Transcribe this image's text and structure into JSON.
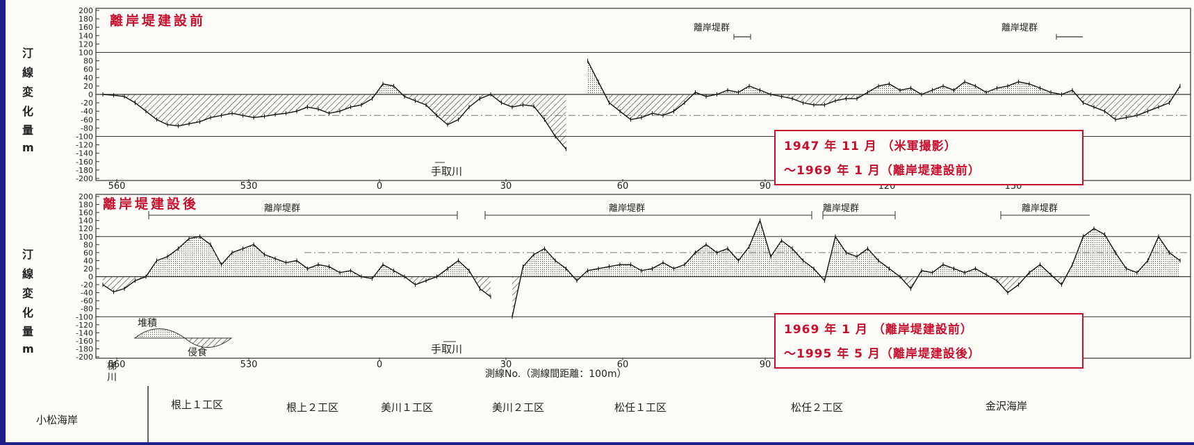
{
  "y_axis_label": [
    "汀",
    "線",
    "変",
    "化",
    "量",
    "m"
  ],
  "y_ticks": [
    200,
    180,
    160,
    140,
    120,
    100,
    80,
    60,
    40,
    20,
    0,
    -20,
    -40,
    -60,
    -80,
    -100,
    -120,
    -140,
    -160,
    -180,
    -200
  ],
  "x_ticks": [
    "560",
    "530",
    "0",
    "30",
    "60",
    "90",
    "120",
    "150"
  ],
  "x_axis_title": "測線No.（測線間距離：100m）",
  "x_origin_label": [
    "梯",
    "川"
  ],
  "river_label": "手取川",
  "group_label": "離岸堤群",
  "chart_data": [
    {
      "type": "area",
      "panel": "top",
      "title": "離岸堤建設前",
      "ylim": [
        -200,
        200
      ],
      "period": [
        "1947 年 11 月 （米軍撮影）",
        "～1969 年 1 月（離岸堤建設前）"
      ],
      "reference_lines": [
        100,
        -100
      ],
      "mean_lines": [
        -50
      ],
      "detached_breakwater_groups": [
        "離岸堤群",
        "離岸堤群"
      ],
      "x": [
        0,
        2,
        4,
        6,
        8,
        10,
        12,
        14,
        16,
        18,
        20,
        22,
        24,
        26,
        28,
        30,
        32,
        34,
        36,
        38,
        40,
        42,
        44,
        46,
        48,
        50,
        52,
        54,
        56,
        58,
        60,
        62,
        64,
        66,
        68,
        70,
        72,
        74,
        76,
        78,
        80,
        82,
        84,
        86,
        88,
        90,
        92,
        94,
        96,
        98,
        100,
        102,
        104,
        106,
        108,
        110,
        112,
        114,
        116,
        118,
        120,
        122,
        124,
        126,
        128,
        130,
        132,
        134,
        136,
        138,
        140,
        142,
        144,
        146,
        148,
        150,
        152,
        154,
        156,
        158,
        160,
        162,
        164,
        166,
        168,
        170,
        172,
        174,
        176,
        178,
        180,
        182,
        184,
        186,
        188,
        190,
        192,
        194,
        196,
        198,
        200
      ],
      "values": [
        0,
        -2,
        -5,
        -20,
        -40,
        -60,
        -72,
        -75,
        -70,
        -65,
        -55,
        -50,
        -45,
        -50,
        -55,
        -52,
        -48,
        -45,
        -40,
        -30,
        -35,
        -45,
        -40,
        -30,
        -25,
        -10,
        25,
        20,
        -5,
        -15,
        -25,
        -50,
        -72,
        -60,
        -30,
        -10,
        0,
        -20,
        -30,
        -25,
        -28,
        -60,
        -100,
        -130,
        null,
        80,
        30,
        -20,
        -40,
        -60,
        -55,
        -45,
        -50,
        -40,
        -20,
        5,
        -5,
        0,
        10,
        5,
        20,
        10,
        0,
        -5,
        -10,
        -20,
        -25,
        -25,
        -15,
        -10,
        -10,
        5,
        20,
        25,
        10,
        15,
        0,
        10,
        20,
        10,
        30,
        20,
        5,
        15,
        20,
        30,
        25,
        15,
        5,
        0,
        10,
        -20,
        -30,
        -40,
        -60,
        -55,
        -50,
        -40,
        -30,
        -20,
        20
      ]
    },
    {
      "type": "area",
      "panel": "bottom",
      "title": "離岸堤建設後",
      "ylim": [
        -200,
        200
      ],
      "period": [
        "1969 年 1 月 （離岸堤建設前）",
        "～1995 年 5 月（離岸堤建設後）"
      ],
      "reference_lines": [
        100,
        -100
      ],
      "mean_lines": [
        60
      ],
      "detached_breakwater_groups": [
        "離岸堤群",
        "離岸堤群",
        "離岸堤群",
        "離岸堤群"
      ],
      "legend_items": [
        "堆積",
        "侵食"
      ],
      "x": [
        0,
        2,
        4,
        6,
        8,
        10,
        12,
        14,
        16,
        18,
        20,
        22,
        24,
        26,
        28,
        30,
        32,
        34,
        36,
        38,
        40,
        42,
        44,
        46,
        48,
        50,
        52,
        54,
        56,
        58,
        60,
        62,
        64,
        66,
        68,
        70,
        72,
        74,
        76,
        78,
        80,
        82,
        84,
        86,
        88,
        90,
        92,
        94,
        96,
        98,
        100,
        102,
        104,
        106,
        108,
        110,
        112,
        114,
        116,
        118,
        120,
        122,
        124,
        126,
        128,
        130,
        132,
        134,
        136,
        138,
        140,
        142,
        144,
        146,
        148,
        150,
        152,
        154,
        156,
        158,
        160,
        162,
        164,
        166,
        168,
        170,
        172,
        174,
        176,
        178,
        180,
        182,
        184,
        186,
        188,
        190,
        192,
        194,
        196,
        198,
        200
      ],
      "values": [
        -20,
        -38,
        -30,
        -10,
        0,
        40,
        50,
        70,
        95,
        100,
        80,
        30,
        60,
        70,
        80,
        55,
        45,
        35,
        40,
        20,
        30,
        25,
        10,
        15,
        0,
        -5,
        30,
        15,
        0,
        -20,
        -10,
        0,
        20,
        40,
        15,
        -30,
        -50,
        null,
        -100,
        25,
        55,
        70,
        40,
        20,
        -10,
        15,
        20,
        25,
        30,
        30,
        15,
        20,
        35,
        20,
        30,
        60,
        80,
        60,
        70,
        40,
        75,
        140,
        50,
        90,
        70,
        40,
        20,
        -10,
        100,
        60,
        50,
        70,
        40,
        20,
        0,
        -30,
        15,
        10,
        30,
        20,
        10,
        20,
        5,
        -10,
        -40,
        -20,
        10,
        30,
        5,
        -20,
        30,
        100,
        120,
        105,
        60,
        20,
        10,
        40,
        100,
        60,
        40
      ]
    }
  ],
  "zones": {
    "label": "小松海岸",
    "items": [
      "根上１工区",
      "根上２工区",
      "美川１工区",
      "美川２工区",
      "松任１工区",
      "松任２工区",
      "金沢海岸"
    ]
  },
  "colors": {
    "background": "#1f1f8c",
    "paper": "#fbfbf8",
    "accent": "#c8102e",
    "ink": "#222222"
  }
}
